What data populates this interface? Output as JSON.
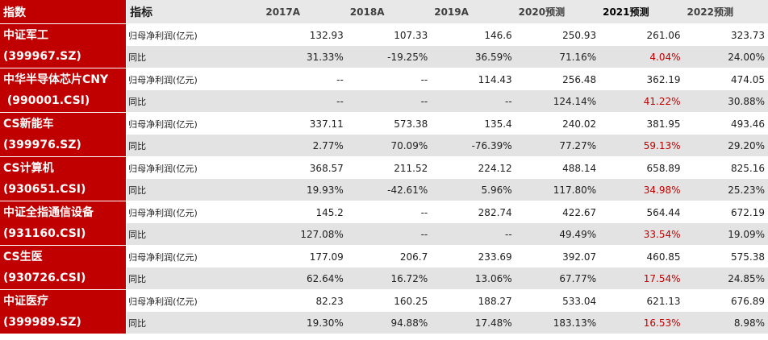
{
  "header": {
    "index_label": "指数",
    "metric_label": "指标",
    "years": [
      "2017A",
      "2018A",
      "2019A",
      "2020预测",
      "2021预测",
      "2022预测"
    ]
  },
  "rows": [
    {
      "name_line1": "中证军工",
      "name_line2": "(399967.SZ)",
      "metric1": "归母净利润(亿元)",
      "metric2": "同比",
      "vals1": [
        "132.93",
        "107.33",
        "146.6",
        "250.93",
        "261.06",
        "323.73"
      ],
      "vals2": [
        "31.33%",
        "-19.25%",
        "36.59%",
        "71.16%",
        "4.04%",
        "24.00%"
      ]
    },
    {
      "name_line1": "中华半导体芯片CNY",
      "name_line2": " (990001.CSI)",
      "metric1": "归母净利润(亿元)",
      "metric2": "同比",
      "vals1": [
        "--",
        "--",
        "114.43",
        "256.48",
        "362.19",
        "474.05"
      ],
      "vals2": [
        "--",
        "--",
        "--",
        "124.14%",
        "41.22%",
        "30.88%"
      ]
    },
    {
      "name_line1": "CS新能车",
      "name_line2": "(399976.SZ)",
      "metric1": "归母净利润(亿元)",
      "metric2": "同比",
      "vals1": [
        "337.11",
        "573.38",
        "135.4",
        "240.02",
        "381.95",
        "493.46"
      ],
      "vals2": [
        "2.77%",
        "70.09%",
        "-76.39%",
        "77.27%",
        "59.13%",
        "29.20%"
      ]
    },
    {
      "name_line1": "CS计算机",
      "name_line2": "(930651.CSI)",
      "metric1": "归母净利润(亿元)",
      "metric2": "同比",
      "vals1": [
        "368.57",
        "211.52",
        "224.12",
        "488.14",
        "658.89",
        "825.16"
      ],
      "vals2": [
        "19.93%",
        "-42.61%",
        "5.96%",
        "117.80%",
        "34.98%",
        "25.23%"
      ]
    },
    {
      "name_line1": "中证全指通信设备",
      "name_line2": "(931160.CSI)",
      "metric1": "归母净利润(亿元)",
      "metric2": "同比",
      "vals1": [
        "145.2",
        "--",
        "282.74",
        "422.67",
        "564.44",
        "672.19"
      ],
      "vals2": [
        "127.08%",
        "--",
        "--",
        "49.49%",
        "33.54%",
        "19.09%"
      ]
    },
    {
      "name_line1": "CS生医",
      "name_line2": "(930726.CSI)",
      "metric1": "归母净利润(亿元)",
      "metric2": "同比",
      "vals1": [
        "177.09",
        "206.7",
        "233.69",
        "392.07",
        "460.85",
        "575.38"
      ],
      "vals2": [
        "62.64%",
        "16.72%",
        "13.06%",
        "67.77%",
        "17.54%",
        "24.85%"
      ]
    },
    {
      "name_line1": "中证医疗",
      "name_line2": "(399989.SZ)",
      "metric1": "归母净利润(亿元)",
      "metric2": "同比",
      "vals1": [
        "82.23",
        "160.25",
        "188.27",
        "533.04",
        "621.13",
        "676.89"
      ],
      "vals2": [
        "19.30%",
        "94.88%",
        "17.48%",
        "183.13%",
        "16.53%",
        "8.98%"
      ]
    }
  ],
  "colors": {
    "index_bg": "#c00000",
    "header_bg": "#e8e8e8",
    "alt_row_bg": "#e3e3e3",
    "highlight_text": "#c00000"
  }
}
